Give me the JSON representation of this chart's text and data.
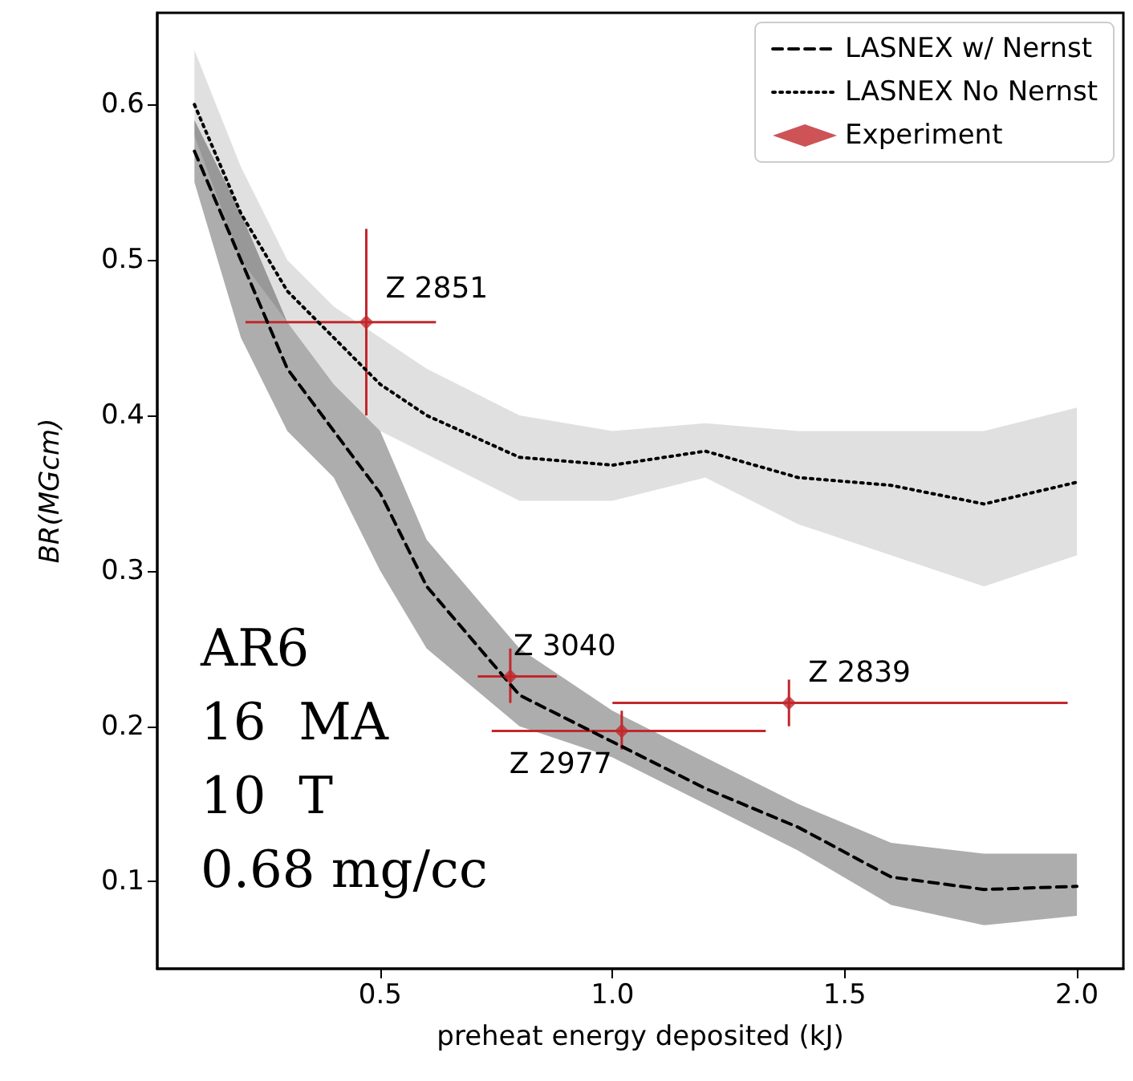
{
  "chart_data": {
    "type": "line",
    "xlabel": "preheat energy deposited (kJ)",
    "ylabel": "BR(MGcm)",
    "xlim": [
      0.02,
      2.1
    ],
    "ylim": [
      0.044,
      0.659
    ],
    "xticks": [
      {
        "value": 0.5,
        "label": "0.5"
      },
      {
        "value": 1,
        "label": "1.0"
      },
      {
        "value": 1.5,
        "label": "1.5"
      },
      {
        "value": 2,
        "label": "2.0"
      }
    ],
    "yticks": [
      0.1,
      0.2,
      0.3,
      0.4,
      0.5,
      0.6
    ],
    "grid": false,
    "legend": "top right",
    "series": [
      {
        "name": "LASNEX w/ Nernst",
        "color": "#000000",
        "line_style": "dashed",
        "marker": "none",
        "x": [
          0.1,
          0.2,
          0.3,
          0.4,
          0.5,
          0.6,
          0.8,
          1.0,
          1.2,
          1.4,
          1.6,
          1.8,
          2.0
        ],
        "values": [
          0.57,
          0.5,
          0.43,
          0.39,
          0.35,
          0.29,
          0.22,
          0.19,
          0.16,
          0.135,
          0.103,
          0.095,
          0.097
        ],
        "lower": [
          0.55,
          0.45,
          0.39,
          0.36,
          0.3,
          0.25,
          0.2,
          0.18,
          0.15,
          0.12,
          0.085,
          0.072,
          0.078
        ],
        "upper": [
          0.59,
          0.53,
          0.46,
          0.42,
          0.39,
          0.32,
          0.25,
          0.21,
          0.18,
          0.15,
          0.125,
          0.118,
          0.118
        ]
      },
      {
        "name": "LASNEX No Nernst",
        "color": "#000000",
        "line_style": "dotted",
        "marker": "none",
        "x": [
          0.1,
          0.2,
          0.3,
          0.4,
          0.5,
          0.6,
          0.8,
          1.0,
          1.2,
          1.4,
          1.6,
          1.8,
          2.0
        ],
        "values": [
          0.6,
          0.53,
          0.48,
          0.45,
          0.42,
          0.4,
          0.373,
          0.368,
          0.377,
          0.36,
          0.355,
          0.343,
          0.357
        ],
        "lower": [
          0.58,
          0.5,
          0.46,
          0.42,
          0.39,
          0.375,
          0.345,
          0.345,
          0.36,
          0.33,
          0.31,
          0.29,
          0.31
        ],
        "upper": [
          0.635,
          0.56,
          0.5,
          0.47,
          0.45,
          0.43,
          0.4,
          0.39,
          0.395,
          0.39,
          0.39,
          0.39,
          0.405
        ]
      },
      {
        "name": "Experiment",
        "type": "scatter",
        "color": "#c0282d",
        "marker": "diamond",
        "x": [
          0.47,
          0.78,
          1.02,
          1.38
        ],
        "values": [
          0.46,
          0.232,
          0.197,
          0.215
        ],
        "errors": [
          [
            0.4,
            0.52
          ],
          [
            0.215,
            0.25
          ],
          [
            0.185,
            0.21
          ],
          [
            0.2,
            0.23
          ]
        ],
        "xerrors": [
          [
            0.21,
            0.62
          ],
          [
            0.71,
            0.88
          ],
          [
            0.74,
            1.33
          ],
          [
            1.0,
            1.98
          ]
        ]
      }
    ],
    "annotations": [
      {
        "text": "Z 2851",
        "x": 0.47,
        "y": 0.46
      },
      {
        "text": "Z 3040",
        "x": 0.78,
        "y": 0.232
      },
      {
        "text": "Z 2977",
        "x": 1.02,
        "y": 0.197
      },
      {
        "text": "Z 2839",
        "x": 1.38,
        "y": 0.215
      },
      "AR6",
      "16  MA",
      "10  T",
      "0.68 mg/cc"
    ]
  }
}
